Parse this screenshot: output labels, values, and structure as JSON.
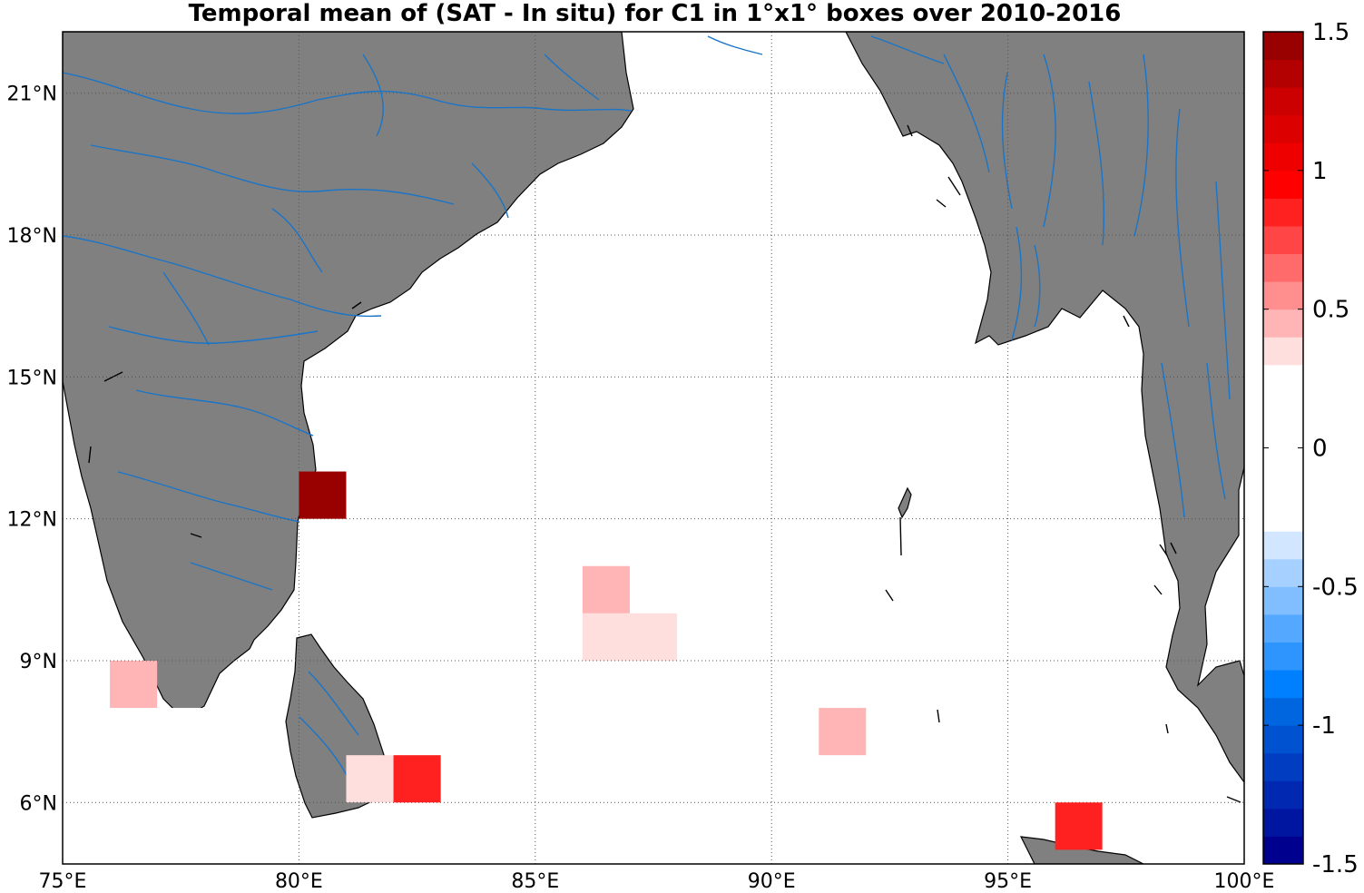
{
  "title": "Temporal mean of (SAT - In situ) for C1 in 1°x1° boxes over 2010-2016",
  "map": {
    "lon_range": [
      75,
      100
    ],
    "lat_range": [
      4.7,
      22.3
    ],
    "lon_ticks": [
      {
        "value": 75,
        "label": "75°E"
      },
      {
        "value": 80,
        "label": "80°E"
      },
      {
        "value": 85,
        "label": "85°E"
      },
      {
        "value": 90,
        "label": "90°E"
      },
      {
        "value": 95,
        "label": "95°E"
      },
      {
        "value": 100,
        "label": "100°E"
      }
    ],
    "lat_ticks": [
      {
        "value": 6,
        "label": "6°N"
      },
      {
        "value": 9,
        "label": "9°N"
      },
      {
        "value": 12,
        "label": "12°N"
      },
      {
        "value": 15,
        "label": "15°N"
      },
      {
        "value": 18,
        "label": "18°N"
      },
      {
        "value": 21,
        "label": "21°N"
      }
    ],
    "grid": "dotted",
    "land_color": "#808080",
    "river_color": "#1a75c8",
    "ocean_color": "#ffffff"
  },
  "chart_data": {
    "type": "heatmap",
    "title": "Temporal mean of (SAT - In situ) for C1 in 1°x1° boxes over 2010-2016",
    "cell_size_deg": 1,
    "cells": [
      {
        "lon": 80,
        "lat": 12,
        "value": 1.45
      },
      {
        "lon": 81,
        "lat": 9,
        "value": -0.1
      },
      {
        "lon": 76,
        "lat": 8,
        "value": 0.45
      },
      {
        "lon": 77,
        "lat": 7,
        "value": 0.25
      },
      {
        "lon": 81,
        "lat": 6,
        "value": 0.35
      },
      {
        "lon": 82,
        "lat": 7,
        "value": 0.15
      },
      {
        "lon": 82,
        "lat": 6,
        "value": 0.85
      },
      {
        "lon": 86,
        "lat": 10,
        "value": 0.45
      },
      {
        "lon": 86,
        "lat": 9,
        "value": 0.35
      },
      {
        "lon": 87,
        "lat": 9,
        "value": 0.35
      },
      {
        "lon": 90,
        "lat": 8,
        "value": 0.15
      },
      {
        "lon": 91,
        "lat": 8,
        "value": 0.15
      },
      {
        "lon": 91,
        "lat": 7,
        "value": 0.45
      },
      {
        "lon": 92,
        "lat": 7,
        "value": 0.25
      },
      {
        "lon": 93,
        "lat": 6,
        "value": -0.25
      },
      {
        "lon": 94,
        "lat": 6,
        "value": 0.25
      },
      {
        "lon": 95,
        "lat": 6,
        "value": -0.25
      },
      {
        "lon": 96,
        "lat": 5,
        "value": 0.85
      },
      {
        "lon": 97,
        "lat": 5,
        "value": -0.25
      },
      {
        "lon": 98,
        "lat": 5,
        "value": 0.15
      }
    ],
    "colorbar": {
      "min": -1.5,
      "max": 1.5,
      "step": 0.1,
      "ticks": [
        {
          "value": 1.5,
          "label": "1.5"
        },
        {
          "value": 1,
          "label": "1"
        },
        {
          "value": 0.5,
          "label": "0.5"
        },
        {
          "value": 0,
          "label": "0"
        },
        {
          "value": -0.5,
          "label": "-0.5"
        },
        {
          "value": -1,
          "label": "-1"
        },
        {
          "value": -1.5,
          "label": "-1.5"
        }
      ],
      "colors_bottom_to_top": [
        "#00008f",
        "#0015a0",
        "#0028b0",
        "#003dc0",
        "#0052d0",
        "#0066e0",
        "#0080ff",
        "#2e95ff",
        "#55a8ff",
        "#80beff",
        "#a6d0ff",
        "#d2e6ff",
        "#ffffff",
        "#ffffff",
        "#ffffff",
        "#ffffff",
        "#ffffff",
        "#ffffff",
        "#ffdede",
        "#ffb5b5",
        "#ff8f8f",
        "#ff6b6b",
        "#ff4545",
        "#ff2020",
        "#ff0000",
        "#ee0000",
        "#dd0000",
        "#cc0000",
        "#b30000",
        "#990000"
      ]
    }
  }
}
